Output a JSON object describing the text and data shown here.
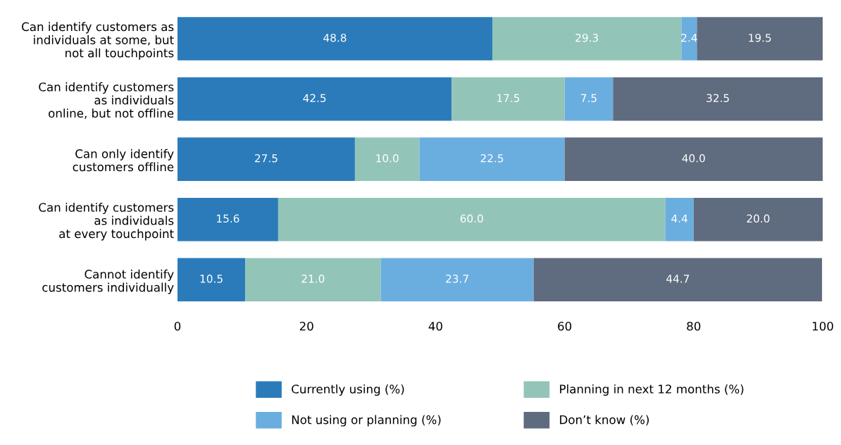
{
  "chart_data": {
    "type": "bar",
    "orientation": "horizontal",
    "stacked": true,
    "legend": "bottom",
    "grid": false,
    "categories": [
      "Can identify customers as\nindividuals at some, but\nnot all touchpoints",
      "Can identify customers\nas individuals\nonline, but not offline",
      "Can only identify\ncustomers offline",
      "Can identify customers\nas individuals\nat every touchpoint",
      "Cannot identify\ncustomers individually"
    ],
    "series": [
      {
        "name": "Currently using (%)",
        "color": "#2b7bba",
        "values": [
          48.8,
          42.5,
          27.5,
          15.6,
          10.5
        ],
        "value_labels": [
          "48.8",
          "42.5",
          "27.5",
          "15.6",
          "10.5"
        ]
      },
      {
        "name": "Planning in next 12 months (%)",
        "color": "#93c4b8",
        "values": [
          29.3,
          17.5,
          10,
          60,
          21
        ],
        "value_labels": [
          "29.3",
          "17.5",
          "10.0",
          "60.0",
          "21.0"
        ]
      },
      {
        "name": "Not using or planning (%)",
        "color": "#6aaee0",
        "values": [
          2.4,
          7.5,
          22.5,
          4.4,
          23.7
        ],
        "value_labels": [
          "2.4",
          "7.5",
          "22.5",
          "4.4",
          "23.7"
        ]
      },
      {
        "name": "Don’t know (%)",
        "color": "#5f6b7e",
        "values": [
          19.5,
          32.5,
          40,
          20,
          44.7
        ],
        "value_labels": [
          "19.5",
          "32.5",
          "40.0",
          "20.0",
          "44.7"
        ]
      }
    ],
    "xlim": [
      0,
      100
    ],
    "xticks": [
      0,
      20,
      40,
      60,
      80,
      100
    ]
  }
}
